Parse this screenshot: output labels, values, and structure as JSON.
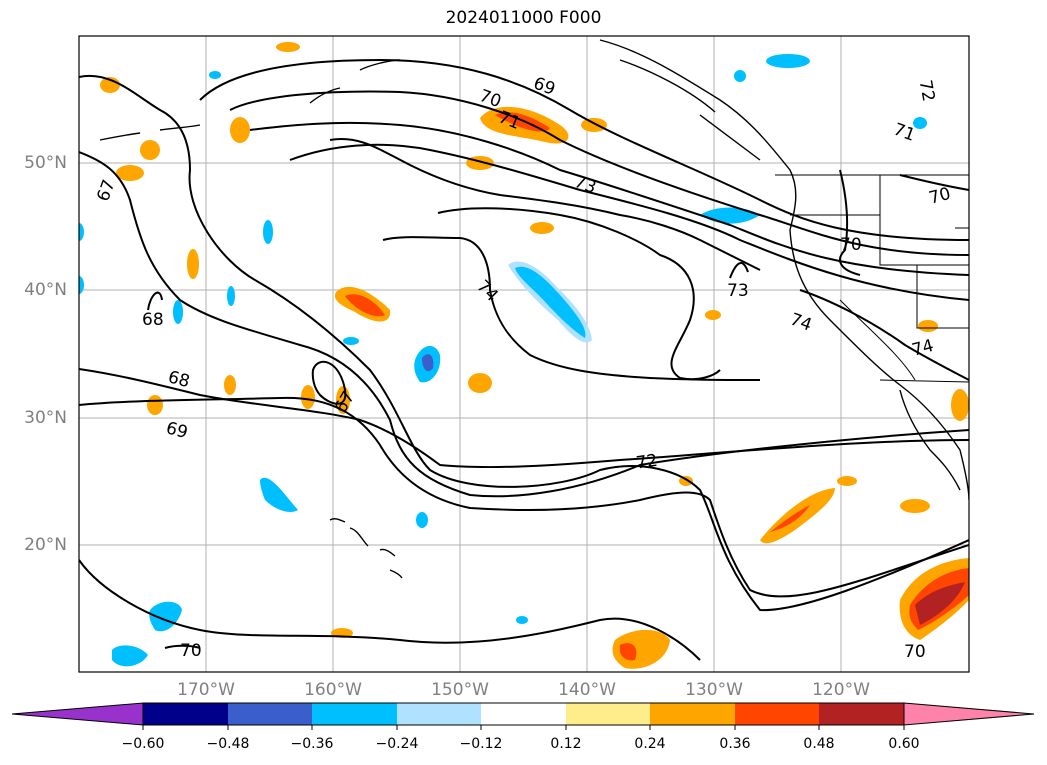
{
  "title": "2024011000 F000",
  "lat_labels": [
    "50°N",
    "40°N",
    "30°N",
    "20°N"
  ],
  "lon_labels": [
    "170°W",
    "160°W",
    "150°W",
    "140°W",
    "130°W",
    "120°W"
  ],
  "colorbar": {
    "colors": [
      "#9932cc",
      "#00008b",
      "#3a5fcd",
      "#00bfff",
      "#b0e2ff",
      "#ffffff",
      "#ffec8b",
      "#ffa500",
      "#ff4500",
      "#b22222",
      "#ff82ab"
    ],
    "ticks": [
      "−0.60",
      "−0.48",
      "−0.36",
      "−0.24",
      "−0.12",
      "0.12",
      "0.24",
      "0.36",
      "0.48",
      "0.60"
    ]
  },
  "contour_labels": [
    "69",
    "70",
    "71",
    "73",
    "72",
    "71",
    "70",
    "67",
    "68",
    "68",
    "69",
    "74",
    "73",
    "74",
    "74",
    "67",
    "72",
    "70",
    "70",
    "70"
  ]
}
